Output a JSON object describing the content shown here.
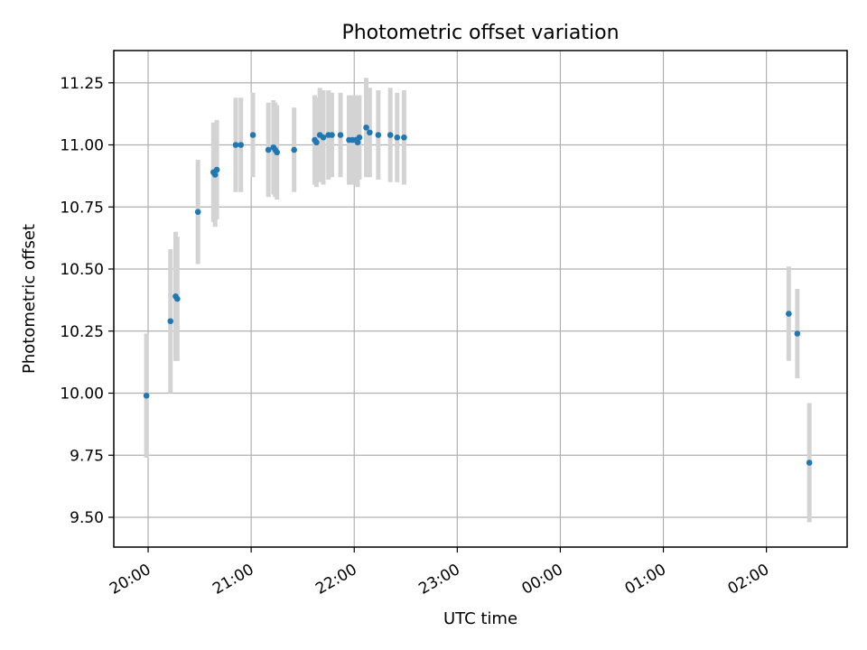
{
  "chart_data": {
    "type": "scatter",
    "title": "Photometric offset variation",
    "xlabel": "UTC time",
    "ylabel": "Photometric offset",
    "ylim": [
      9.38,
      11.38
    ],
    "y_ticks": [
      9.5,
      9.75,
      10.0,
      10.25,
      10.5,
      10.75,
      11.0,
      11.25
    ],
    "y_tick_labels": [
      "9.50",
      "9.75",
      "10.00",
      "10.25",
      "10.50",
      "10.75",
      "11.00",
      "11.25"
    ],
    "xlim": [
      "19:40",
      "02:47"
    ],
    "x_ticks": [
      "20:00",
      "21:00",
      "22:00",
      "23:00",
      "00:00",
      "01:00",
      "02:00"
    ],
    "x_tick_labels": [
      "20:00",
      "21:00",
      "22:00",
      "23:00",
      "00:00",
      "01:00",
      "02:00"
    ],
    "grid": true,
    "colors": {
      "points": "#1f77b4",
      "error_bars": "#d3d3d3",
      "grid": "#b0b0b0"
    },
    "series": [
      {
        "points": [
          {
            "x": "19:59",
            "y": 9.99,
            "err": 0.25
          },
          {
            "x": "20:13",
            "y": 10.29,
            "err": 0.29
          },
          {
            "x": "20:16",
            "y": 10.39,
            "err": 0.26
          },
          {
            "x": "20:17",
            "y": 10.38,
            "err": 0.25
          },
          {
            "x": "20:29",
            "y": 10.73,
            "err": 0.21
          },
          {
            "x": "20:38",
            "y": 10.89,
            "err": 0.2
          },
          {
            "x": "20:39",
            "y": 10.88,
            "err": 0.21
          },
          {
            "x": "20:40",
            "y": 10.9,
            "err": 0.2
          },
          {
            "x": "20:51",
            "y": 11.0,
            "err": 0.19
          },
          {
            "x": "20:54",
            "y": 11.0,
            "err": 0.19
          },
          {
            "x": "21:01",
            "y": 11.04,
            "err": 0.17
          },
          {
            "x": "21:10",
            "y": 10.98,
            "err": 0.19
          },
          {
            "x": "21:13",
            "y": 10.99,
            "err": 0.19
          },
          {
            "x": "21:14",
            "y": 10.98,
            "err": 0.19
          },
          {
            "x": "21:15",
            "y": 10.97,
            "err": 0.19
          },
          {
            "x": "21:25",
            "y": 10.98,
            "err": 0.17
          },
          {
            "x": "21:37",
            "y": 11.02,
            "err": 0.18
          },
          {
            "x": "21:38",
            "y": 11.01,
            "err": 0.18
          },
          {
            "x": "21:40",
            "y": 11.04,
            "err": 0.19
          },
          {
            "x": "21:42",
            "y": 11.03,
            "err": 0.19
          },
          {
            "x": "21:45",
            "y": 11.04,
            "err": 0.18
          },
          {
            "x": "21:47",
            "y": 11.04,
            "err": 0.17
          },
          {
            "x": "21:52",
            "y": 11.04,
            "err": 0.17
          },
          {
            "x": "21:57",
            "y": 11.02,
            "err": 0.18
          },
          {
            "x": "21:59",
            "y": 11.02,
            "err": 0.18
          },
          {
            "x": "22:01",
            "y": 11.02,
            "err": 0.18
          },
          {
            "x": "22:02",
            "y": 11.01,
            "err": 0.18
          },
          {
            "x": "22:03",
            "y": 11.03,
            "err": 0.17
          },
          {
            "x": "22:07",
            "y": 11.07,
            "err": 0.2
          },
          {
            "x": "22:09",
            "y": 11.05,
            "err": 0.18
          },
          {
            "x": "22:14",
            "y": 11.04,
            "err": 0.18
          },
          {
            "x": "22:21",
            "y": 11.04,
            "err": 0.19
          },
          {
            "x": "22:25",
            "y": 11.03,
            "err": 0.18
          },
          {
            "x": "22:29",
            "y": 11.03,
            "err": 0.19
          },
          {
            "x": "02:13",
            "y": 10.32,
            "err": 0.19
          },
          {
            "x": "02:18",
            "y": 10.24,
            "err": 0.18
          },
          {
            "x": "02:25",
            "y": 9.72,
            "err": 0.24
          }
        ]
      }
    ]
  }
}
